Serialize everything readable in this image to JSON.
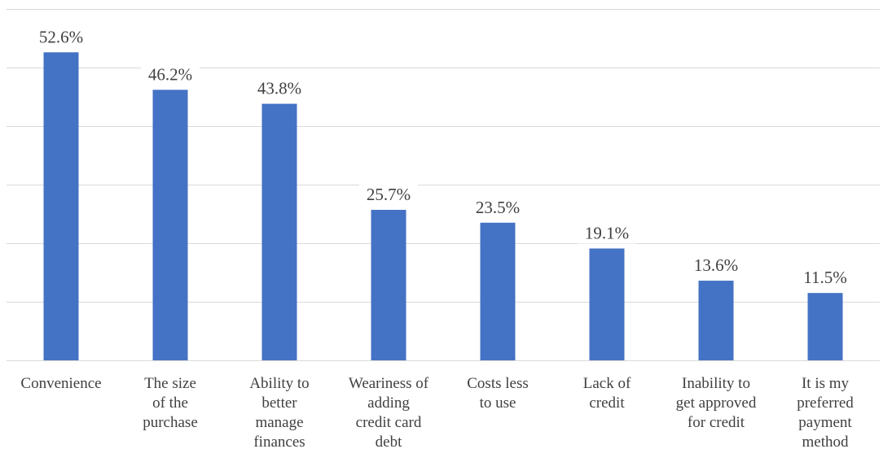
{
  "chart_data": {
    "type": "bar",
    "title": "",
    "xlabel": "",
    "ylabel": "",
    "categories": [
      "Convenience",
      "The size of the purchase",
      "Ability to better manage finances",
      "Weariness of adding credit card debt",
      "Costs less to use",
      "Lack of credit",
      "Inability to get approved for credit",
      "It is my preferred payment method"
    ],
    "category_lines": [
      [
        "Convenience"
      ],
      [
        "The size",
        "of the",
        "purchase"
      ],
      [
        "Ability to",
        "better",
        "manage",
        "finances"
      ],
      [
        "Weariness of",
        "adding",
        "credit card",
        "debt"
      ],
      [
        "Costs less",
        "to use"
      ],
      [
        "Lack of",
        "credit"
      ],
      [
        "Inability to",
        "get approved",
        "for credit"
      ],
      [
        "It is my",
        "preferred",
        "payment",
        "method"
      ]
    ],
    "values": [
      52.6,
      46.2,
      43.8,
      25.7,
      23.5,
      19.1,
      13.6,
      11.5
    ],
    "data_labels": [
      "52.6%",
      "46.2%",
      "43.8%",
      "25.7%",
      "23.5%",
      "19.1%",
      "13.6%",
      "11.5%"
    ],
    "unit": "%",
    "ylim": [
      0,
      60
    ],
    "y_grid_step": 10,
    "grid": true,
    "legend": "none",
    "colors": {
      "bar": "#4472c4",
      "grid": "#d9d9d9",
      "text": "#404040"
    }
  }
}
